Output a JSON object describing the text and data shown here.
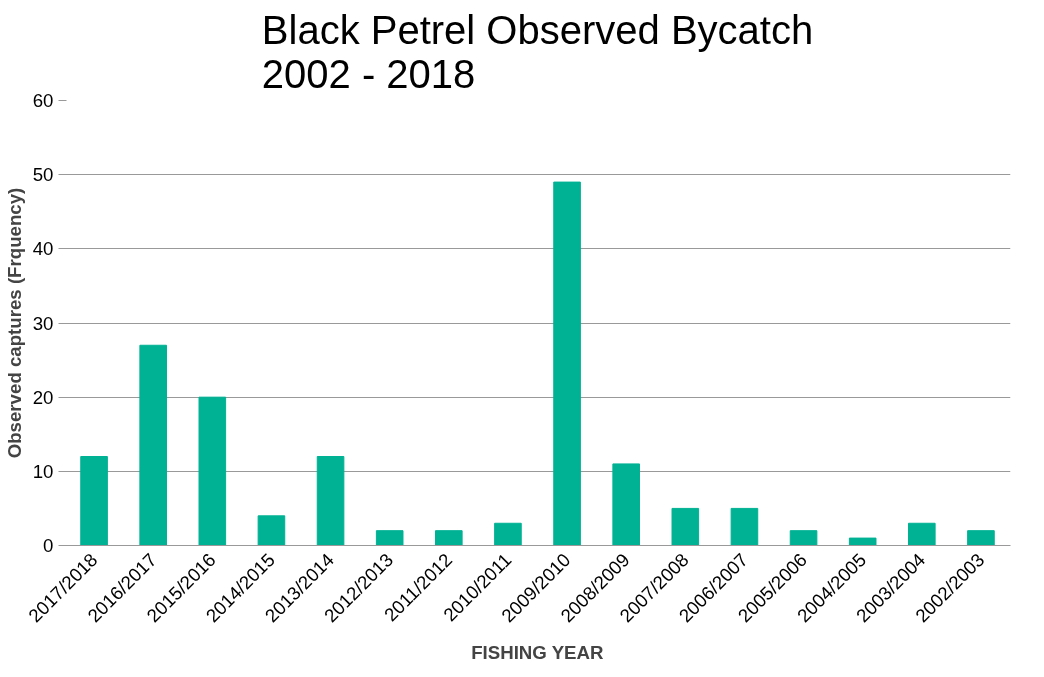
{
  "chart_data": {
    "type": "bar",
    "title": "Black Petrel Observed Bycatch\n2002 - 2018",
    "xlabel": "FISHING YEAR",
    "ylabel": "Observed captures (Frquency)",
    "categories": [
      "2017/2018",
      "2016/2017",
      "2015/2016",
      "2014/2015",
      "2013/2014",
      "2012/2013",
      "2011/2012",
      "2010/2011",
      "2009/2010",
      "2008/2009",
      "2007/2008",
      "2006/2007",
      "2005/2006",
      "2004/2005",
      "2003/2004",
      "2002/2003"
    ],
    "values": [
      12,
      27,
      20,
      4,
      12,
      2,
      2,
      3,
      49,
      11,
      5,
      5,
      2,
      1,
      3,
      2
    ],
    "color": "#00b294",
    "ylim": [
      0,
      60
    ],
    "yticks": [
      0,
      10,
      20,
      30,
      40,
      50,
      60
    ],
    "grid": "y"
  }
}
